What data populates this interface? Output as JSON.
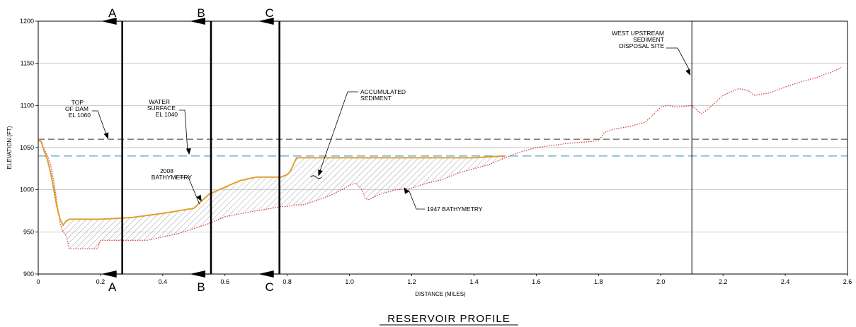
{
  "chart_data": {
    "type": "line",
    "title": "RESERVOIR PROFILE",
    "xlabel": "DISTANCE (MILES)",
    "ylabel": "ELEVATION (FT)",
    "xlim": [
      0,
      2.6
    ],
    "ylim": [
      900,
      1200
    ],
    "x_ticks": [
      0,
      0.2,
      0.4,
      0.6,
      0.8,
      1.0,
      1.2,
      1.4,
      1.6,
      1.8,
      2.0,
      2.2,
      2.4,
      2.6
    ],
    "x_tick_labels": [
      "0",
      "0.2",
      "0.4",
      "0.6",
      "0.8",
      "1.0",
      "1.2",
      "1.4",
      "1.6",
      "1.8",
      "2.0",
      "2.2",
      "2.4",
      "2.6"
    ],
    "y_ticks": [
      900,
      950,
      1000,
      1050,
      1100,
      1150,
      1200
    ],
    "y_tick_labels": [
      "900",
      "950",
      "1000",
      "1050",
      "1100",
      "1150",
      "1200"
    ],
    "grid": "horizontal",
    "colors": {
      "bathymetry_2008": "#e0a030",
      "bathymetry_1947": "#d93030",
      "water_surface": "#2a8fc0",
      "top_of_dam": "#333333",
      "sediment_hatch": "#888888"
    },
    "reference_lines": [
      {
        "y": 1060,
        "label": [
          "TOP",
          "OF DAM",
          "EL 1060"
        ]
      },
      {
        "y": 1040,
        "label": [
          "WATER",
          "SURFACE",
          "EL 1040"
        ]
      }
    ],
    "series": [
      {
        "name": "2008 BATHYMETRY",
        "label": [
          "2008",
          "BATHYMETRY"
        ],
        "x": [
          0,
          0.01,
          0.02,
          0.03,
          0.04,
          0.05,
          0.06,
          0.07,
          0.08,
          0.09,
          0.1,
          0.2,
          0.3,
          0.4,
          0.5,
          0.52,
          0.55,
          0.6,
          0.63,
          0.65,
          0.7,
          0.75,
          0.78,
          0.8,
          0.81,
          0.82,
          0.83,
          1.0,
          1.2,
          1.4,
          1.5
        ],
        "y": [
          1060,
          1057,
          1045,
          1035,
          1020,
          1000,
          980,
          965,
          958,
          963,
          965,
          965,
          967,
          972,
          978,
          985,
          995,
          1003,
          1008,
          1011,
          1015,
          1015,
          1015,
          1018,
          1022,
          1030,
          1038,
          1038,
          1038,
          1038,
          1040
        ]
      },
      {
        "name": "1947 BATHYMETRY",
        "label": [
          "1947 BATHYMETRY"
        ],
        "x": [
          0,
          0.01,
          0.03,
          0.04,
          0.05,
          0.06,
          0.07,
          0.08,
          0.09,
          0.1,
          0.19,
          0.2,
          0.35,
          0.45,
          0.55,
          0.6,
          0.7,
          0.75,
          0.78,
          0.8,
          0.82,
          0.85,
          0.9,
          0.95,
          1.0,
          1.02,
          1.04,
          1.05,
          1.06,
          1.1,
          1.15,
          1.2,
          1.25,
          1.3,
          1.35,
          1.4,
          1.45,
          1.5,
          1.55,
          1.6,
          1.7,
          1.8,
          1.82,
          1.85,
          1.9,
          1.95,
          2.0,
          2.02,
          2.05,
          2.1,
          2.13,
          2.15,
          2.2,
          2.25,
          2.28,
          2.3,
          2.35,
          2.4,
          2.45,
          2.5,
          2.55,
          2.58
        ],
        "y": [
          1060,
          1055,
          1040,
          1030,
          1010,
          985,
          960,
          950,
          945,
          930,
          930,
          940,
          940,
          948,
          960,
          968,
          975,
          978,
          980,
          980,
          982,
          982,
          988,
          995,
          1005,
          1008,
          1000,
          990,
          988,
          995,
          1000,
          1002,
          1008,
          1012,
          1020,
          1025,
          1030,
          1038,
          1045,
          1050,
          1055,
          1058,
          1068,
          1072,
          1075,
          1080,
          1098,
          1100,
          1098,
          1100,
          1090,
          1095,
          1112,
          1120,
          1118,
          1112,
          1115,
          1122,
          1128,
          1133,
          1140,
          1145
        ]
      }
    ],
    "sections": [
      {
        "name": "A",
        "x": 0.27
      },
      {
        "name": "B",
        "x": 0.555
      },
      {
        "name": "C",
        "x": 0.775
      }
    ],
    "markers": [
      {
        "name": "WEST UPSTREAM SEDIMENT DISPOSAL SITE",
        "x": 2.1,
        "label": [
          "WEST UPSTREAM",
          "SEDIMENT",
          "DISPOSAL SITE"
        ]
      }
    ],
    "annotations": {
      "accumulated_sediment": [
        "ACCUMULATED",
        "SEDIMENT"
      ]
    }
  }
}
